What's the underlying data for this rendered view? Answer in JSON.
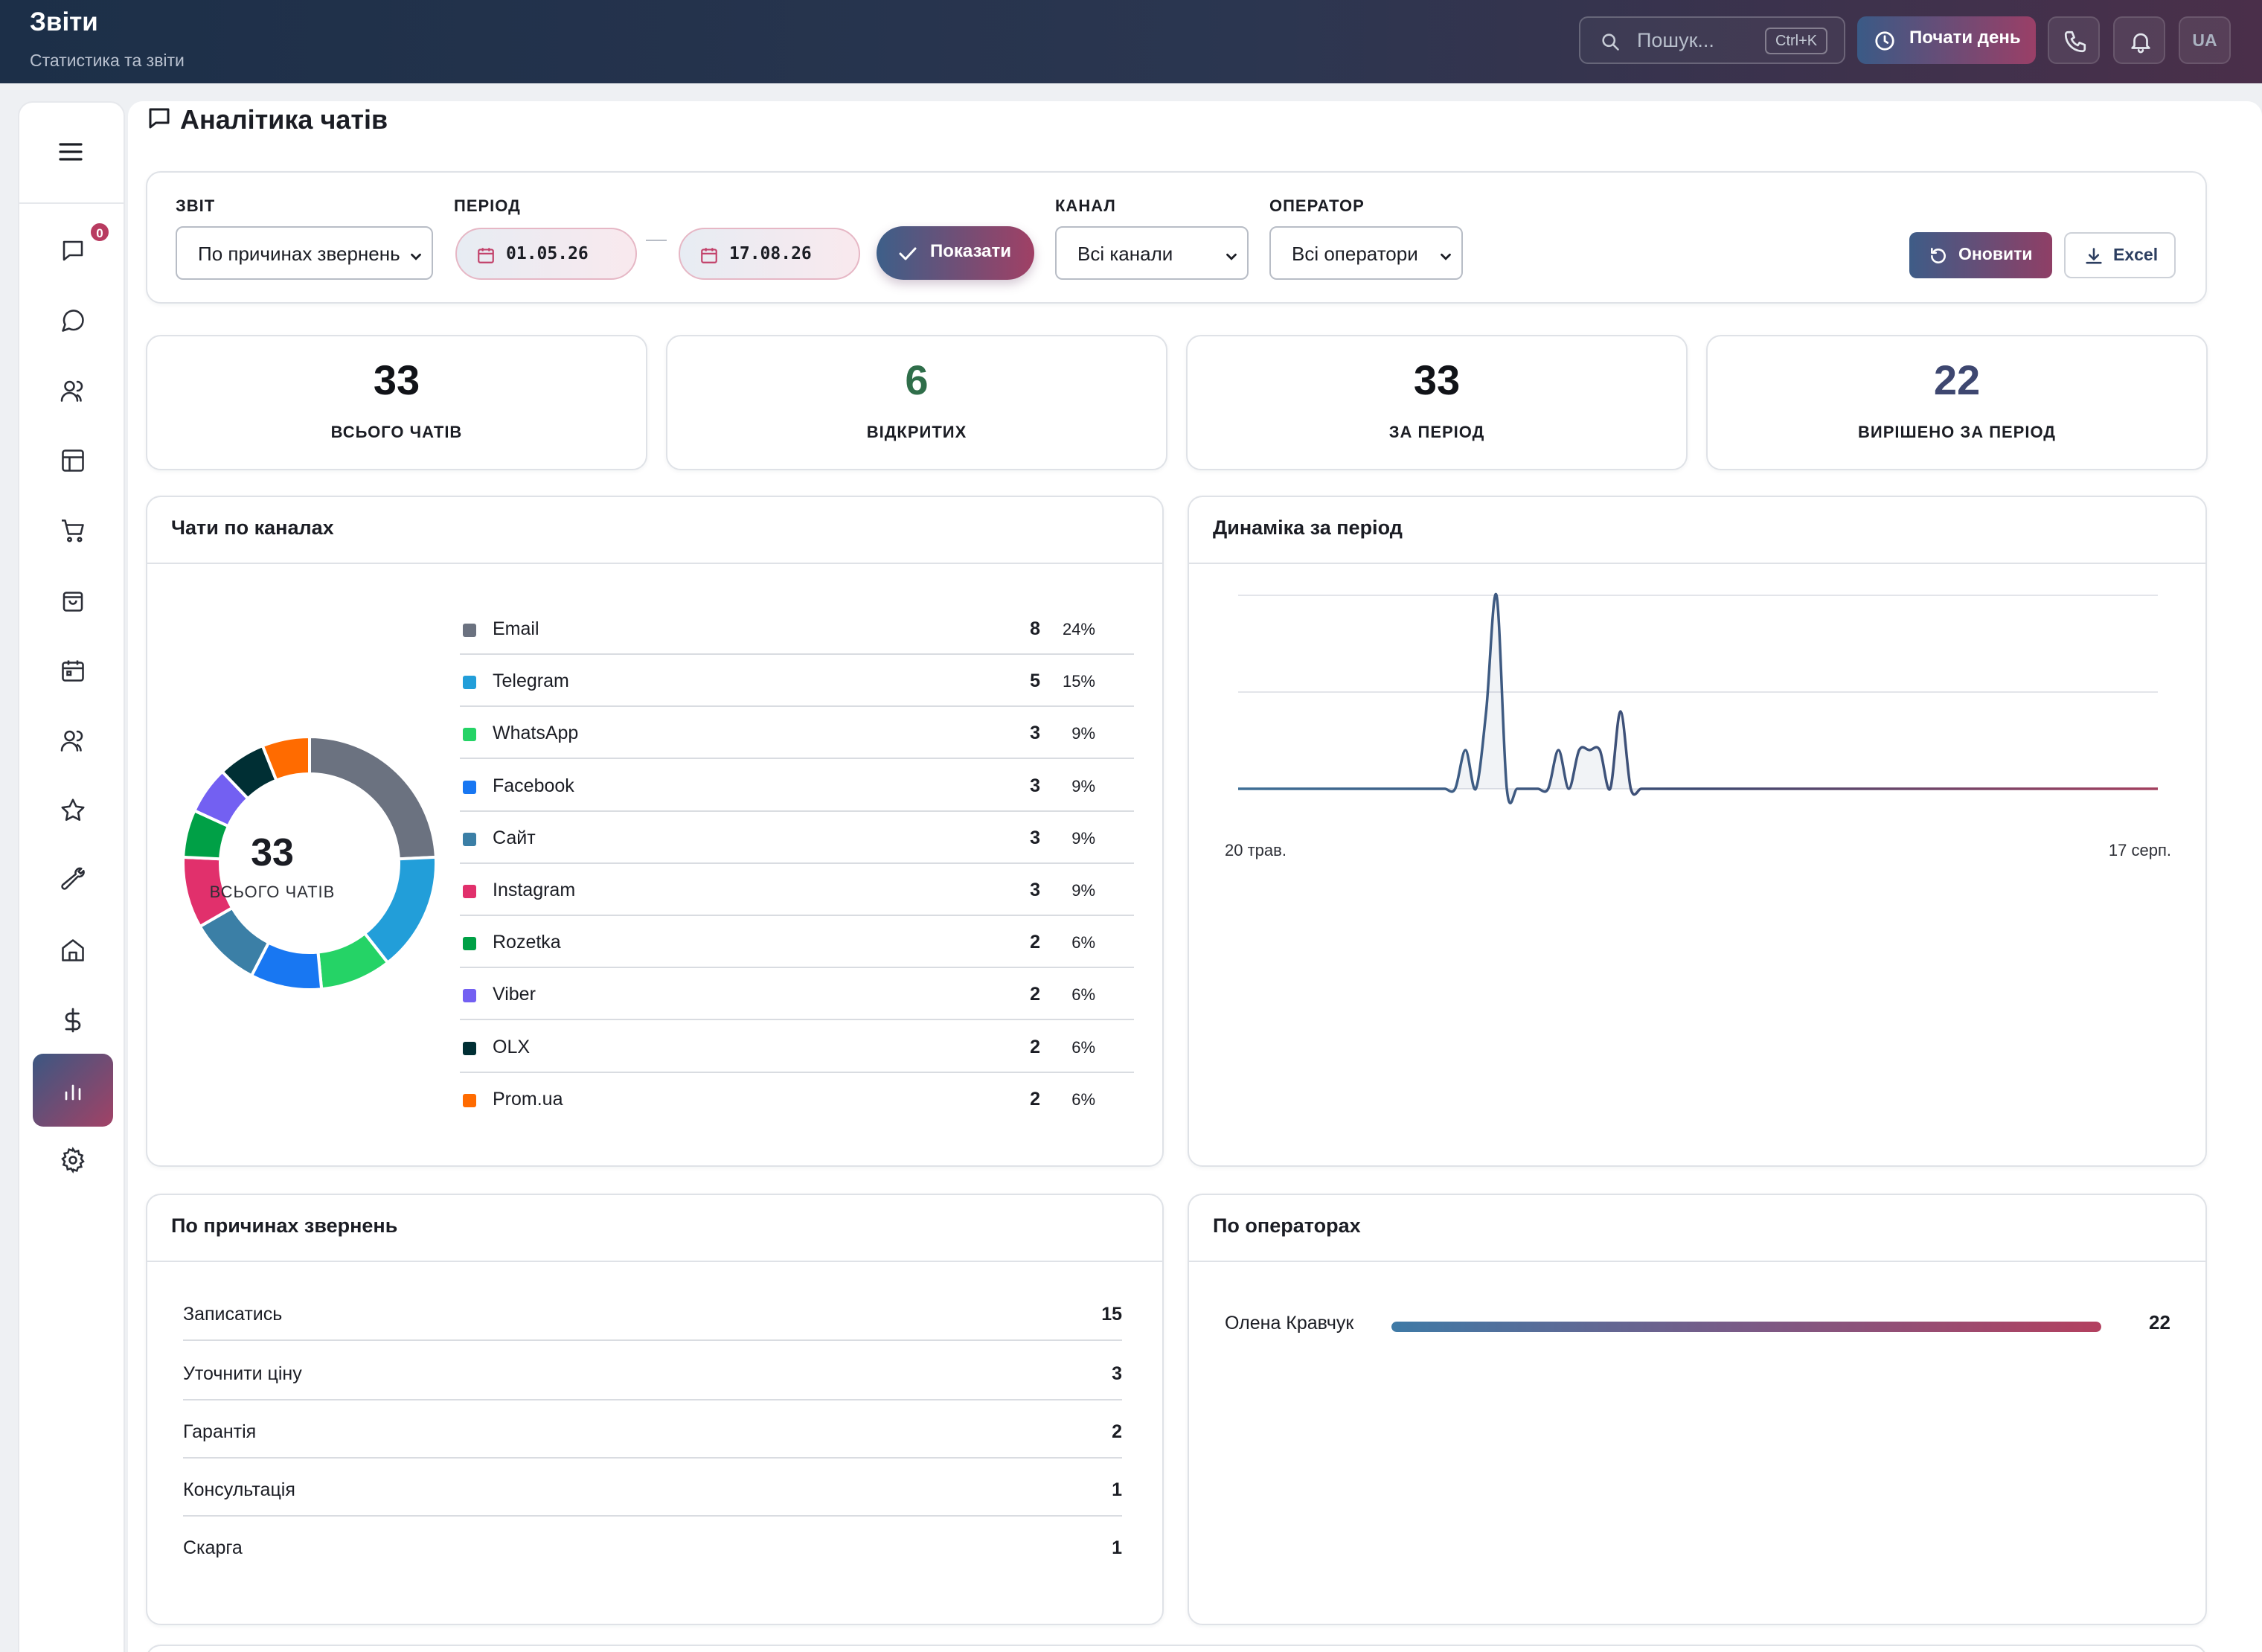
{
  "header": {
    "title": "Звіти",
    "subtitle": "Статистика та звіти",
    "search_placeholder": "Пошук...",
    "search_shortcut": "Ctrl+K",
    "start_day_label": "Почати день",
    "lang": "UA"
  },
  "sidebar": {
    "chat_badge": "0",
    "items": [
      "menu",
      "chats",
      "messages",
      "clients",
      "board",
      "cart",
      "orders",
      "calendar",
      "team",
      "favorites",
      "tools",
      "home",
      "finance",
      "reports",
      "settings"
    ],
    "active": "reports"
  },
  "page": {
    "title": "Аналітика чатів"
  },
  "filters": {
    "report_label": "ЗВІТ",
    "report_value": "По причинах звернень",
    "period_label": "ПЕРІОД",
    "date_from": "01.05.26",
    "date_to": "17.08.26",
    "show_label": "Показати",
    "channel_label": "КАНАЛ",
    "channel_value": "Всі канали",
    "operator_label": "ОПЕРАТОР",
    "operator_value": "Всі оператори",
    "refresh_label": "Оновити",
    "excel_label": "Excel"
  },
  "kpis": [
    {
      "value": "33",
      "label": "ВСЬОГО ЧАТІВ",
      "color": "#111318"
    },
    {
      "value": "6",
      "label": "ВІДКРИТИХ",
      "color": "#2f6e4a"
    },
    {
      "value": "33",
      "label": "ЗА ПЕРІОД",
      "color": "#111318"
    },
    {
      "value": "22",
      "label": "ВИРІШЕНО ЗА ПЕРІОД",
      "color": "#3e4770"
    }
  ],
  "channels": {
    "title": "Чати по каналах",
    "total": "33",
    "total_label": "ВСЬОГО ЧАТІВ",
    "items": [
      {
        "name": "Email",
        "count": "8",
        "pct": "24%",
        "color": "#6b7280"
      },
      {
        "name": "Telegram",
        "count": "5",
        "pct": "15%",
        "color": "#229ed9"
      },
      {
        "name": "WhatsApp",
        "count": "3",
        "pct": "9%",
        "color": "#25d366"
      },
      {
        "name": "Facebook",
        "count": "3",
        "pct": "9%",
        "color": "#1877f2"
      },
      {
        "name": "Сайт",
        "count": "3",
        "pct": "9%",
        "color": "#3b7fa6"
      },
      {
        "name": "Instagram",
        "count": "3",
        "pct": "9%",
        "color": "#e1306c"
      },
      {
        "name": "Rozetka",
        "count": "2",
        "pct": "6%",
        "color": "#00a046"
      },
      {
        "name": "Viber",
        "count": "2",
        "pct": "6%",
        "color": "#7360f2"
      },
      {
        "name": "OLX",
        "count": "2",
        "pct": "6%",
        "color": "#002f34"
      },
      {
        "name": "Prom.ua",
        "count": "2",
        "pct": "6%",
        "color": "#ff6b00"
      }
    ]
  },
  "dynamics": {
    "title": "Динаміка за період",
    "x_start": "20 трав.",
    "x_end": "17 серп."
  },
  "reasons": {
    "title": "По причинах звернень",
    "items": [
      {
        "name": "Записатись",
        "count": "15"
      },
      {
        "name": "Уточнити ціну",
        "count": "3"
      },
      {
        "name": "Гарантія",
        "count": "2"
      },
      {
        "name": "Консультація",
        "count": "1"
      },
      {
        "name": "Скарга",
        "count": "1"
      }
    ]
  },
  "operators": {
    "title": "По операторах",
    "items": [
      {
        "name": "Олена Кравчук",
        "count": "22",
        "share": 1.0
      }
    ]
  },
  "chart_data": [
    {
      "type": "pie",
      "categories": [
        "Email",
        "Telegram",
        "WhatsApp",
        "Facebook",
        "Сайт",
        "Instagram",
        "Rozetka",
        "Viber",
        "OLX",
        "Prom.ua"
      ],
      "values": [
        8,
        5,
        3,
        3,
        3,
        3,
        2,
        2,
        2,
        2
      ]
    },
    {
      "type": "line",
      "series": [
        {
          "values": [
            0,
            0,
            0,
            0,
            0,
            0,
            0,
            0,
            0,
            0,
            0,
            0,
            0,
            0,
            0,
            0,
            0,
            0,
            0,
            0,
            0,
            0,
            1,
            0,
            2,
            5,
            0,
            0,
            0,
            0,
            0,
            1,
            0,
            1,
            1,
            1,
            0,
            2,
            0,
            0,
            0,
            0,
            0,
            0,
            0,
            0,
            0,
            0,
            0,
            0,
            0,
            0,
            0,
            0,
            0,
            0,
            0,
            0,
            0,
            0,
            0,
            0,
            0,
            0,
            0,
            0,
            0,
            0,
            0,
            0,
            0,
            0,
            0,
            0,
            0,
            0,
            0,
            0,
            0,
            0,
            0,
            0,
            0,
            0,
            0,
            0,
            0,
            0,
            0,
            0
          ]
        }
      ],
      "x_start": "20 трав.",
      "x_end": "17 серп.",
      "ylim": [
        0,
        5
      ],
      "grid": true
    }
  ]
}
